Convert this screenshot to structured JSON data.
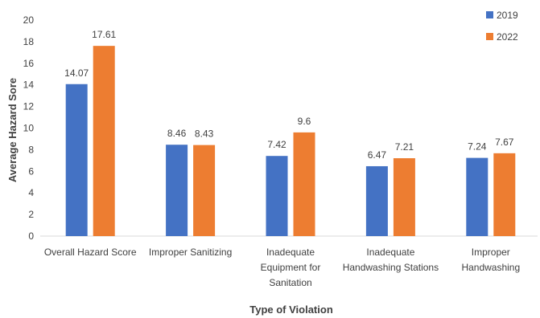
{
  "chart_data": {
    "type": "bar",
    "title": "",
    "xlabel": "Type of Violation",
    "ylabel": "Average Hazard Sore",
    "ylim": [
      0,
      20
    ],
    "yticks": [
      0,
      2,
      4,
      6,
      8,
      10,
      12,
      14,
      16,
      18,
      20
    ],
    "grid": false,
    "legend_position": "top-right",
    "categories": [
      [
        "Overall Hazard Score"
      ],
      [
        "Improper Sanitizing"
      ],
      [
        "Inadequate",
        "Equipment for",
        "Sanitation"
      ],
      [
        "Inadequate",
        "Handwashing Stations"
      ],
      [
        "Improper",
        "Handwashing"
      ]
    ],
    "series": [
      {
        "name": "2019",
        "color": "#4472C4",
        "values": [
          14.07,
          8.46,
          7.42,
          6.47,
          7.24
        ],
        "labels": [
          "14.07",
          "8.46",
          "7.42",
          "6.47",
          "7.24"
        ]
      },
      {
        "name": "2022",
        "color": "#ED7D31",
        "values": [
          17.61,
          8.43,
          9.6,
          7.21,
          7.67
        ],
        "labels": [
          "17.61",
          "8.43",
          "9.6",
          "7.21",
          "7.67"
        ]
      }
    ]
  }
}
